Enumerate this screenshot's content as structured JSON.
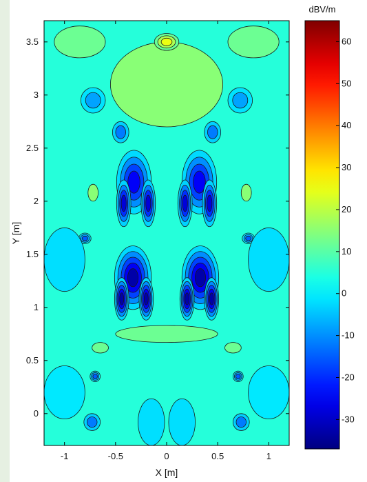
{
  "chart_data": {
    "type": "heatmap",
    "subtype": "filled-contour",
    "title": "",
    "xlabel": "X [m]",
    "ylabel": "Y [m]",
    "xlim": [
      -1.2,
      1.2
    ],
    "ylim": [
      -0.3,
      3.7
    ],
    "xticks": [
      -1,
      -0.5,
      0,
      0.5,
      1
    ],
    "xtick_labels": [
      "-1",
      "-0.5",
      "0",
      "0.5",
      "1"
    ],
    "yticks": [
      0,
      0.5,
      1,
      1.5,
      2,
      2.5,
      3,
      3.5
    ],
    "ytick_labels": [
      "0",
      "0.5",
      "1",
      "1.5",
      "2",
      "2.5",
      "3",
      "3.5"
    ],
    "colorbar": {
      "label": "dBV/m",
      "range": [
        -37,
        65
      ],
      "ticks": [
        -30,
        -20,
        -10,
        0,
        10,
        20,
        30,
        40,
        50,
        60
      ],
      "tick_labels": [
        "-30",
        "-20",
        "-10",
        "0",
        "10",
        "20",
        "30",
        "40",
        "50",
        "60"
      ],
      "colormap": "jet"
    },
    "background_level": 5,
    "features": [
      {
        "x": -0.32,
        "y": 2.18,
        "rx": 0.17,
        "ry": 0.3,
        "level": -25
      },
      {
        "x": -0.42,
        "y": 1.98,
        "rx": 0.07,
        "ry": 0.22,
        "level": -28
      },
      {
        "x": -0.18,
        "y": 1.98,
        "rx": 0.07,
        "ry": 0.22,
        "level": -28
      },
      {
        "x": 0.32,
        "y": 2.18,
        "rx": 0.17,
        "ry": 0.3,
        "level": -25
      },
      {
        "x": 0.42,
        "y": 1.98,
        "rx": 0.07,
        "ry": 0.22,
        "level": -28
      },
      {
        "x": 0.18,
        "y": 1.98,
        "rx": 0.07,
        "ry": 0.22,
        "level": -28
      },
      {
        "x": -0.33,
        "y": 1.28,
        "rx": 0.18,
        "ry": 0.3,
        "level": -33
      },
      {
        "x": -0.44,
        "y": 1.08,
        "rx": 0.07,
        "ry": 0.2,
        "level": -33
      },
      {
        "x": -0.2,
        "y": 1.08,
        "rx": 0.07,
        "ry": 0.2,
        "level": -33
      },
      {
        "x": 0.33,
        "y": 1.28,
        "rx": 0.18,
        "ry": 0.3,
        "level": -33
      },
      {
        "x": 0.44,
        "y": 1.08,
        "rx": 0.07,
        "ry": 0.2,
        "level": -33
      },
      {
        "x": 0.2,
        "y": 1.08,
        "rx": 0.07,
        "ry": 0.2,
        "level": -33
      },
      {
        "x": 0.0,
        "y": 3.1,
        "rx": 0.55,
        "ry": 0.4,
        "level": 15
      },
      {
        "x": 0.0,
        "y": 3.5,
        "rx": 0.12,
        "ry": 0.08,
        "level": 25
      },
      {
        "x": -0.85,
        "y": 3.5,
        "rx": 0.25,
        "ry": 0.15,
        "level": 12
      },
      {
        "x": 0.85,
        "y": 3.5,
        "rx": 0.25,
        "ry": 0.15,
        "level": 12
      },
      {
        "x": -0.72,
        "y": 2.95,
        "rx": 0.12,
        "ry": 0.12,
        "level": -8
      },
      {
        "x": 0.72,
        "y": 2.95,
        "rx": 0.12,
        "ry": 0.12,
        "level": -8
      },
      {
        "x": -0.45,
        "y": 2.65,
        "rx": 0.08,
        "ry": 0.1,
        "level": -12
      },
      {
        "x": 0.45,
        "y": 2.65,
        "rx": 0.08,
        "ry": 0.1,
        "level": -12
      },
      {
        "x": -0.8,
        "y": 1.65,
        "rx": 0.06,
        "ry": 0.05,
        "level": -15
      },
      {
        "x": 0.8,
        "y": 1.65,
        "rx": 0.06,
        "ry": 0.05,
        "level": -15
      },
      {
        "x": -0.72,
        "y": 2.08,
        "rx": 0.05,
        "ry": 0.08,
        "level": 15
      },
      {
        "x": 0.78,
        "y": 2.08,
        "rx": 0.05,
        "ry": 0.08,
        "level": 15
      },
      {
        "x": -0.65,
        "y": 0.62,
        "rx": 0.08,
        "ry": 0.05,
        "level": 12
      },
      {
        "x": 0.65,
        "y": 0.62,
        "rx": 0.08,
        "ry": 0.05,
        "level": 12
      },
      {
        "x": -0.7,
        "y": 0.35,
        "rx": 0.05,
        "ry": 0.05,
        "level": -15
      },
      {
        "x": 0.7,
        "y": 0.35,
        "rx": 0.05,
        "ry": 0.05,
        "level": -15
      },
      {
        "x": -0.73,
        "y": -0.08,
        "rx": 0.08,
        "ry": 0.08,
        "level": -12
      },
      {
        "x": 0.73,
        "y": -0.08,
        "rx": 0.08,
        "ry": 0.08,
        "level": -12
      },
      {
        "x": -0.15,
        "y": -0.08,
        "rx": 0.13,
        "ry": 0.22,
        "level": -2
      },
      {
        "x": 0.15,
        "y": -0.08,
        "rx": 0.13,
        "ry": 0.22,
        "level": -2
      },
      {
        "x": 0.0,
        "y": 0.75,
        "rx": 0.5,
        "ry": 0.08,
        "level": 12
      },
      {
        "x": -1.0,
        "y": 1.45,
        "rx": 0.2,
        "ry": 0.3,
        "level": -2
      },
      {
        "x": 1.0,
        "y": 1.45,
        "rx": 0.2,
        "ry": 0.3,
        "level": -2
      },
      {
        "x": -1.0,
        "y": 0.2,
        "rx": 0.2,
        "ry": 0.25,
        "level": -1
      },
      {
        "x": 1.0,
        "y": 0.2,
        "rx": 0.2,
        "ry": 0.25,
        "level": -1
      }
    ]
  }
}
